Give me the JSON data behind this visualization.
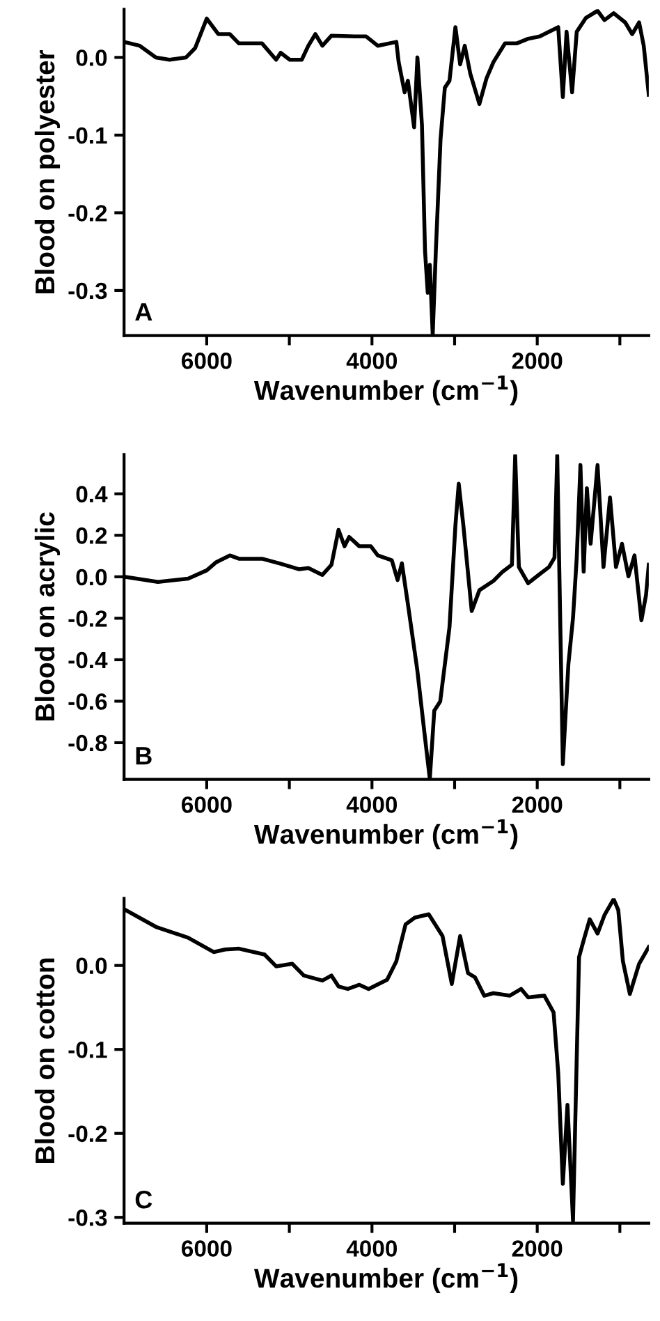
{
  "chart_data": [
    {
      "type": "line",
      "ylabel": "Blood on polyester",
      "xlabel": "Wavenumber (cm$^{−1}$)",
      "annotations": [
        "A"
      ],
      "xlim": [
        7000,
        650
      ],
      "ylim": [
        -0.358,
        0.062
      ],
      "grid": false,
      "legend": false,
      "marker": "none",
      "line_style": "solid",
      "xticks": [
        {
          "value": 6000,
          "label": "6000"
        },
        {
          "value": 5000,
          "label": null
        },
        {
          "value": 4000,
          "label": "4000"
        },
        {
          "value": 3000,
          "label": null
        },
        {
          "value": 2000,
          "label": "2000"
        },
        {
          "value": 1000,
          "label": null
        }
      ],
      "yticks": [
        {
          "value": 0.0,
          "label": "0.0"
        },
        {
          "value": -0.1,
          "label": "-0.1"
        },
        {
          "value": -0.2,
          "label": "-0.2"
        },
        {
          "value": -0.3,
          "label": "-0.3"
        }
      ],
      "series": [
        {
          "color": "#000000",
          "x": [
            7000,
            6810,
            6615,
            6450,
            6250,
            6140,
            6000,
            5860,
            5720,
            5610,
            5330,
            5160,
            5105,
            4995,
            4850,
            4770,
            4685,
            4600,
            4490,
            4210,
            4070,
            3930,
            3705,
            3677,
            3605,
            3565,
            3490,
            3450,
            3395,
            3358,
            3325,
            3300,
            3265,
            3227,
            3170,
            3118,
            3062,
            2990,
            2933,
            2877,
            2810,
            2700,
            2614,
            2530,
            2390,
            2250,
            2110,
            1970,
            1746,
            1690,
            1645,
            1578,
            1522,
            1410,
            1270,
            1186,
            1075,
            935,
            851,
            767,
            711,
            650
          ],
          "values": [
            0.02,
            0.015,
            0.0,
            -0.003,
            0.0,
            0.012,
            0.05,
            0.03,
            0.03,
            0.018,
            0.018,
            -0.003,
            0.006,
            -0.003,
            -0.003,
            0.015,
            0.03,
            0.015,
            0.028,
            0.027,
            0.027,
            0.015,
            0.02,
            -0.006,
            -0.045,
            -0.03,
            -0.09,
            0.0,
            -0.087,
            -0.249,
            -0.303,
            -0.267,
            -0.357,
            -0.249,
            -0.105,
            -0.039,
            -0.03,
            0.039,
            -0.009,
            0.015,
            -0.021,
            -0.06,
            -0.027,
            -0.006,
            0.018,
            0.018,
            0.024,
            0.027,
            0.039,
            -0.051,
            0.033,
            -0.045,
            0.033,
            0.051,
            0.06,
            0.048,
            0.057,
            0.045,
            0.03,
            0.045,
            0.015,
            -0.048
          ]
        }
      ]
    },
    {
      "type": "line",
      "ylabel": "Blood on acrylic",
      "xlabel": "Wavenumber (cm$^{−1}$)",
      "annotations": [
        "B"
      ],
      "xlim": [
        7000,
        650
      ],
      "ylim": [
        -0.977,
        0.59
      ],
      "grid": false,
      "legend": false,
      "marker": "none",
      "line_style": "solid",
      "xticks": [
        {
          "value": 6000,
          "label": "6000"
        },
        {
          "value": 5000,
          "label": null
        },
        {
          "value": 4000,
          "label": "4000"
        },
        {
          "value": 3000,
          "label": null
        },
        {
          "value": 2000,
          "label": "2000"
        },
        {
          "value": 1000,
          "label": null
        }
      ],
      "yticks": [
        {
          "value": 0.4,
          "label": "0.4"
        },
        {
          "value": 0.2,
          "label": "0.2"
        },
        {
          "value": 0.0,
          "label": "0.0"
        },
        {
          "value": -0.2,
          "label": "-0.2"
        },
        {
          "value": -0.4,
          "label": "-0.4"
        },
        {
          "value": -0.6,
          "label": "-0.6"
        },
        {
          "value": -0.8,
          "label": "-0.8"
        }
      ],
      "series": [
        {
          "color": "#000000",
          "x": [
            7000,
            6590,
            6225,
            6000,
            5890,
            5720,
            5610,
            5330,
            5105,
            4880,
            4770,
            4600,
            4490,
            4405,
            4332,
            4276,
            4153,
            4013,
            3930,
            3760,
            3690,
            3638,
            3565,
            3453,
            3370,
            3300,
            3246,
            3174,
            3062,
            2990,
            2950,
            2894,
            2793,
            2700,
            2530,
            2418,
            2306,
            2267,
            2222,
            2110,
            1970,
            1858,
            1791,
            1758,
            1690,
            1623,
            1567,
            1522,
            1477,
            1438,
            1399,
            1354,
            1270,
            1198,
            1119,
            1047,
            974,
            896,
            823,
            739,
            683,
            650
          ],
          "values": [
            0.0,
            -0.025,
            -0.009,
            0.031,
            0.069,
            0.103,
            0.087,
            0.087,
            0.063,
            0.036,
            0.042,
            0.009,
            0.058,
            0.226,
            0.147,
            0.192,
            0.147,
            0.147,
            0.103,
            0.08,
            -0.016,
            0.065,
            -0.132,
            -0.445,
            -0.735,
            -0.975,
            -0.646,
            -0.601,
            -0.244,
            0.248,
            0.449,
            0.248,
            -0.165,
            -0.065,
            -0.02,
            0.025,
            0.058,
            0.585,
            0.047,
            -0.031,
            0.013,
            0.047,
            0.092,
            0.585,
            -0.903,
            -0.422,
            -0.199,
            0.092,
            0.539,
            0.025,
            0.427,
            0.159,
            0.539,
            0.047,
            0.382,
            0.047,
            0.159,
            0.002,
            0.103,
            -0.21,
            -0.087,
            0.058
          ]
        }
      ]
    },
    {
      "type": "line",
      "ylabel": "Blood on cotton",
      "xlabel": "Wavenumber (cm$^{−1}$)",
      "annotations": [
        "C"
      ],
      "xlim": [
        7000,
        650
      ],
      "ylim": [
        -0.307,
        0.08
      ],
      "grid": false,
      "legend": false,
      "marker": "none",
      "line_style": "solid",
      "xticks": [
        {
          "value": 6000,
          "label": "6000"
        },
        {
          "value": 5000,
          "label": null
        },
        {
          "value": 4000,
          "label": "4000"
        },
        {
          "value": 3000,
          "label": null
        },
        {
          "value": 2000,
          "label": "2000"
        },
        {
          "value": 1000,
          "label": null
        }
      ],
      "yticks": [
        {
          "value": 0.0,
          "label": "0.0"
        },
        {
          "value": -0.1,
          "label": "-0.1"
        },
        {
          "value": -0.2,
          "label": "-0.2"
        },
        {
          "value": -0.3,
          "label": "-0.3"
        }
      ],
      "series": [
        {
          "color": "#000000",
          "x": [
            7000,
            6615,
            6225,
            5916,
            5776,
            5610,
            5300,
            5160,
            4965,
            4825,
            4600,
            4490,
            4405,
            4293,
            4153,
            4041,
            3817,
            3705,
            3593,
            3481,
            3313,
            3146,
            3034,
            2933,
            2838,
            2754,
            2642,
            2530,
            2334,
            2194,
            2110,
            1914,
            1802,
            1746,
            1690,
            1634,
            1567,
            1494,
            1438,
            1365,
            1270,
            1186,
            1075,
            1019,
            963,
            879,
            767,
            650
          ],
          "values": [
            0.067,
            0.046,
            0.033,
            0.016,
            0.019,
            0.02,
            0.013,
            -0.001,
            0.002,
            -0.012,
            -0.018,
            -0.012,
            -0.025,
            -0.028,
            -0.023,
            -0.028,
            -0.017,
            0.005,
            0.049,
            0.057,
            0.061,
            0.035,
            -0.022,
            0.035,
            -0.009,
            -0.014,
            -0.036,
            -0.033,
            -0.036,
            -0.028,
            -0.038,
            -0.036,
            -0.056,
            -0.128,
            -0.26,
            -0.166,
            -0.304,
            0.01,
            0.03,
            0.055,
            0.038,
            0.06,
            0.079,
            0.066,
            0.005,
            -0.034,
            0.002,
            0.022
          ]
        }
      ]
    }
  ]
}
